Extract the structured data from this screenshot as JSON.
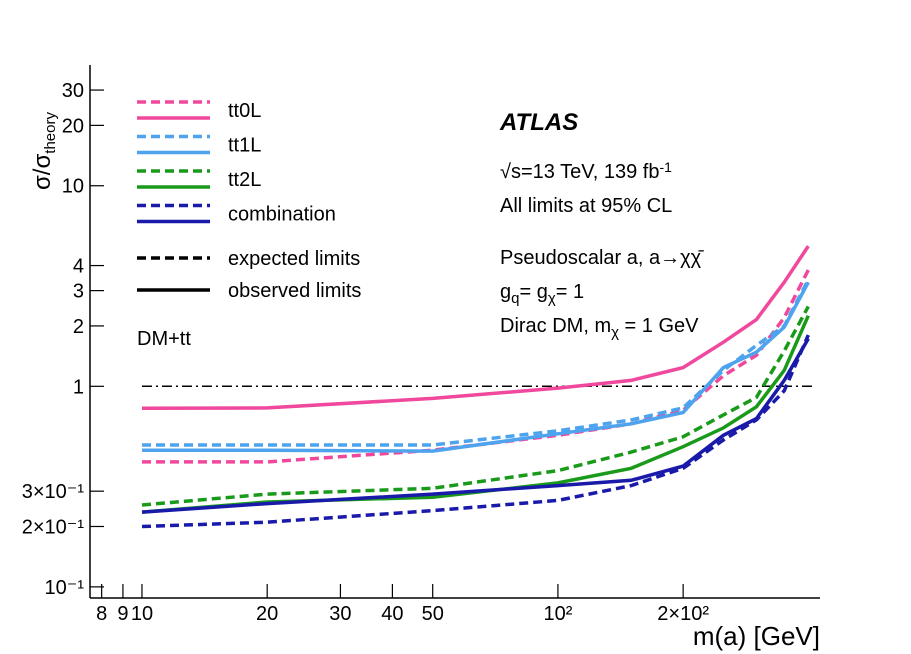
{
  "chart_data": {
    "type": "line",
    "x_scale": "log",
    "y_scale": "log",
    "y_label": [
      {
        "text": "σ/σ"
      },
      {
        "text": "theory",
        "sub": true
      }
    ],
    "x_label": "m(a) [GeV]",
    "xlim": [
      7.5,
      415
    ],
    "ylim": [
      0.088,
      40
    ],
    "xticks": [
      8,
      9,
      10,
      20,
      30,
      40,
      50,
      {
        "value": 100,
        "label": "10²"
      },
      {
        "value": 200,
        "label": "2×10²"
      }
    ],
    "yticks": [
      {
        "value": 0.1,
        "label": "10⁻¹"
      },
      {
        "value": 0.2,
        "label": "2×10⁻¹"
      },
      {
        "value": 0.3,
        "label": "3×10⁻¹"
      },
      1,
      2,
      3,
      4,
      10,
      20,
      30
    ],
    "x": [
      10,
      20,
      50,
      100,
      150,
      200,
      250,
      300,
      350,
      400
    ],
    "series": [
      {
        "name": "tt0L",
        "color": "#f0489c",
        "expected": [
          0.42,
          0.42,
          0.48,
          0.57,
          0.65,
          0.76,
          1.13,
          1.43,
          2.2,
          3.8
        ],
        "observed": [
          0.777,
          0.78,
          0.87,
          0.98,
          1.07,
          1.24,
          1.66,
          2.15,
          3.3,
          5.0
        ]
      },
      {
        "name": "tt1L",
        "color": "#4da3ee",
        "expected": [
          0.51,
          0.51,
          0.51,
          0.6,
          0.68,
          0.78,
          1.2,
          1.6,
          2.0,
          3.4
        ],
        "observed": [
          0.48,
          0.48,
          0.475,
          0.58,
          0.65,
          0.74,
          1.24,
          1.48,
          1.97,
          3.3
        ]
      },
      {
        "name": "tt2L",
        "color": "#1a9a1a",
        "expected": [
          0.256,
          0.29,
          0.31,
          0.38,
          0.47,
          0.56,
          0.72,
          0.88,
          1.5,
          2.5
        ],
        "observed": [
          0.236,
          0.265,
          0.28,
          0.33,
          0.39,
          0.5,
          0.62,
          0.79,
          1.2,
          2.25
        ]
      },
      {
        "name": "combination",
        "color": "#1a1aaa",
        "expected": [
          0.2,
          0.21,
          0.24,
          0.27,
          0.32,
          0.39,
          0.54,
          0.68,
          0.95,
          1.8
        ],
        "observed": [
          0.236,
          0.26,
          0.29,
          0.32,
          0.34,
          0.4,
          0.57,
          0.69,
          1.07,
          1.73
        ]
      }
    ],
    "reference_line": 1,
    "legend_styles": [
      {
        "name": "expected limits",
        "dash": "dashed"
      },
      {
        "name": "observed limits",
        "dash": "solid"
      }
    ],
    "annotations": {
      "experiment": "ATLAS",
      "energy": [
        {
          "text": "√s=13 TeV, 139 fb"
        },
        {
          "text": "-1",
          "sup": true
        }
      ],
      "cl": "All limits at 95% CL",
      "model": "Pseudoscalar a, a→χχ̄",
      "couplings": [
        {
          "text": "g"
        },
        {
          "text": "q",
          "sub": true
        },
        {
          "text": "= g"
        },
        {
          "text": "χ",
          "sub": true
        },
        {
          "text": "= 1"
        }
      ],
      "dm": [
        {
          "text": "Dirac DM, m"
        },
        {
          "text": "χ",
          "sub": true
        },
        {
          "text": " = 1 GeV"
        }
      ],
      "process": "DM+tt"
    }
  }
}
